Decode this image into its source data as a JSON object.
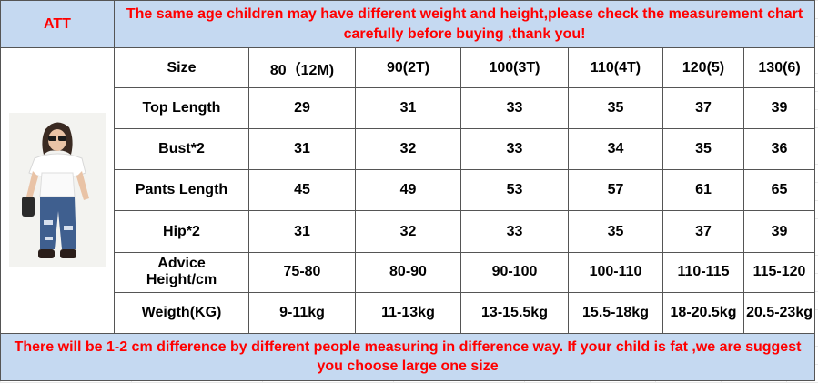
{
  "header": {
    "brand": "ATT",
    "note": "The same age children may have different weight and height,please check the measurement chart carefully before buying ,thank you!"
  },
  "table": {
    "size_label": "Size",
    "sizes": [
      "80（12M)",
      "90(2T)",
      "100(3T)",
      "110(4T)",
      "120(5)",
      "130(6)"
    ],
    "rows": [
      {
        "label": "Top Length",
        "values": [
          "29",
          "31",
          "33",
          "35",
          "37",
          "39"
        ]
      },
      {
        "label": "Bust*2",
        "values": [
          "31",
          "32",
          "33",
          "34",
          "35",
          "36"
        ]
      },
      {
        "label": "Pants Length",
        "values": [
          "45",
          "49",
          "53",
          "57",
          "61",
          "65"
        ]
      },
      {
        "label": "Hip*2",
        "values": [
          "31",
          "32",
          "33",
          "35",
          "37",
          "39"
        ]
      },
      {
        "label": "Advice Height/cm",
        "label_line1": "Advice",
        "label_line2": "Height/cm",
        "values": [
          "75-80",
          "80-90",
          "90-100",
          "100-110",
          "110-115",
          "115-120"
        ]
      },
      {
        "label": "Weigth(KG)",
        "values": [
          "9-11kg",
          "11-13kg",
          "13-15.5kg",
          "15.5-18kg",
          "18-20.5kg",
          "20.5-23kg"
        ]
      }
    ]
  },
  "footer": {
    "note": "There will be 1-2 cm difference by different people measuring in difference way. If your child is fat ,we are suggest you choose large one size"
  },
  "colors": {
    "band_background": "#c5d9f1",
    "band_text": "#ff0000",
    "border": "#555555"
  }
}
